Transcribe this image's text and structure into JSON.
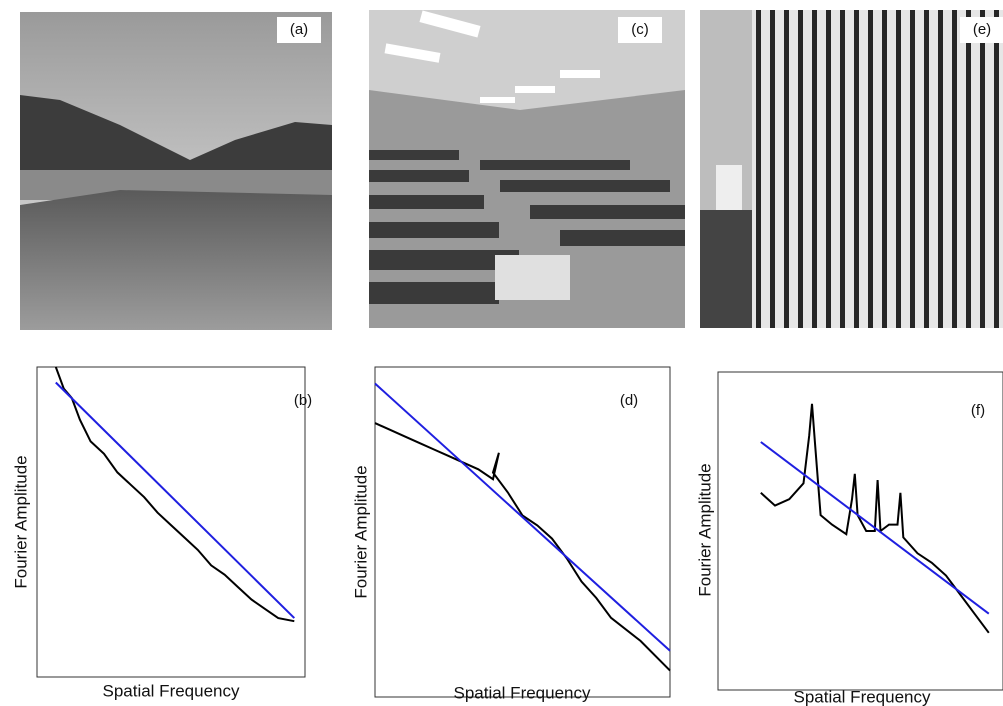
{
  "photos": [
    {
      "label": "(a)"
    },
    {
      "label": "(c)"
    },
    {
      "label": "(e)"
    }
  ],
  "chart_data": [
    {
      "type": "line",
      "annotation": "(b)",
      "xlabel": "Spatial Frequency",
      "ylabel": "Fourier Amplitude",
      "xlim": [
        0,
        1
      ],
      "ylim": [
        0,
        1
      ],
      "series": [
        {
          "color": "#000000",
          "x": [
            0.07,
            0.1,
            0.13,
            0.16,
            0.2,
            0.25,
            0.3,
            0.35,
            0.4,
            0.45,
            0.5,
            0.55,
            0.6,
            0.65,
            0.7,
            0.75,
            0.8,
            0.85,
            0.9,
            0.96
          ],
          "values": [
            1.0,
            0.93,
            0.9,
            0.83,
            0.76,
            0.72,
            0.66,
            0.62,
            0.58,
            0.53,
            0.49,
            0.45,
            0.41,
            0.36,
            0.33,
            0.29,
            0.25,
            0.22,
            0.19,
            0.18
          ]
        },
        {
          "color": "#1f1fe0",
          "x": [
            0.07,
            0.96
          ],
          "values": [
            0.95,
            0.19
          ]
        }
      ]
    },
    {
      "type": "line",
      "annotation": "(d)",
      "xlabel": "Spatial Frequency",
      "ylabel": "Fourier Amplitude",
      "xlim": [
        0,
        1
      ],
      "ylim": [
        0,
        1
      ],
      "series": [
        {
          "color": "#000000",
          "x": [
            0,
            0.05,
            0.1,
            0.15,
            0.2,
            0.25,
            0.3,
            0.35,
            0.4,
            0.42,
            0.4,
            0.45,
            0.5,
            0.55,
            0.6,
            0.65,
            0.7,
            0.75,
            0.8,
            0.9,
            1.0
          ],
          "values": [
            0.83,
            0.81,
            0.79,
            0.77,
            0.75,
            0.73,
            0.71,
            0.69,
            0.66,
            0.74,
            0.68,
            0.62,
            0.55,
            0.52,
            0.48,
            0.42,
            0.35,
            0.3,
            0.24,
            0.17,
            0.08
          ]
        },
        {
          "color": "#1f1fe0",
          "x": [
            0,
            1
          ],
          "values": [
            0.95,
            0.14
          ]
        }
      ]
    },
    {
      "type": "line",
      "annotation": "(f)",
      "xlabel": "Spatial Frequency",
      "ylabel": "Fourier Amplitude",
      "xlim": [
        0,
        1
      ],
      "ylim": [
        0,
        1
      ],
      "series": [
        {
          "color": "#000000",
          "x": [
            0.15,
            0.2,
            0.25,
            0.3,
            0.32,
            0.33,
            0.34,
            0.36,
            0.4,
            0.45,
            0.47,
            0.48,
            0.49,
            0.52,
            0.55,
            0.56,
            0.57,
            0.6,
            0.63,
            0.64,
            0.65,
            0.7,
            0.75,
            0.8,
            0.85,
            0.9,
            0.95
          ],
          "values": [
            0.62,
            0.58,
            0.6,
            0.65,
            0.8,
            0.9,
            0.78,
            0.55,
            0.52,
            0.49,
            0.6,
            0.68,
            0.55,
            0.5,
            0.5,
            0.66,
            0.5,
            0.52,
            0.52,
            0.62,
            0.48,
            0.43,
            0.4,
            0.36,
            0.3,
            0.24,
            0.18
          ]
        },
        {
          "color": "#1f1fe0",
          "x": [
            0.15,
            0.95
          ],
          "values": [
            0.78,
            0.24
          ]
        }
      ]
    }
  ]
}
